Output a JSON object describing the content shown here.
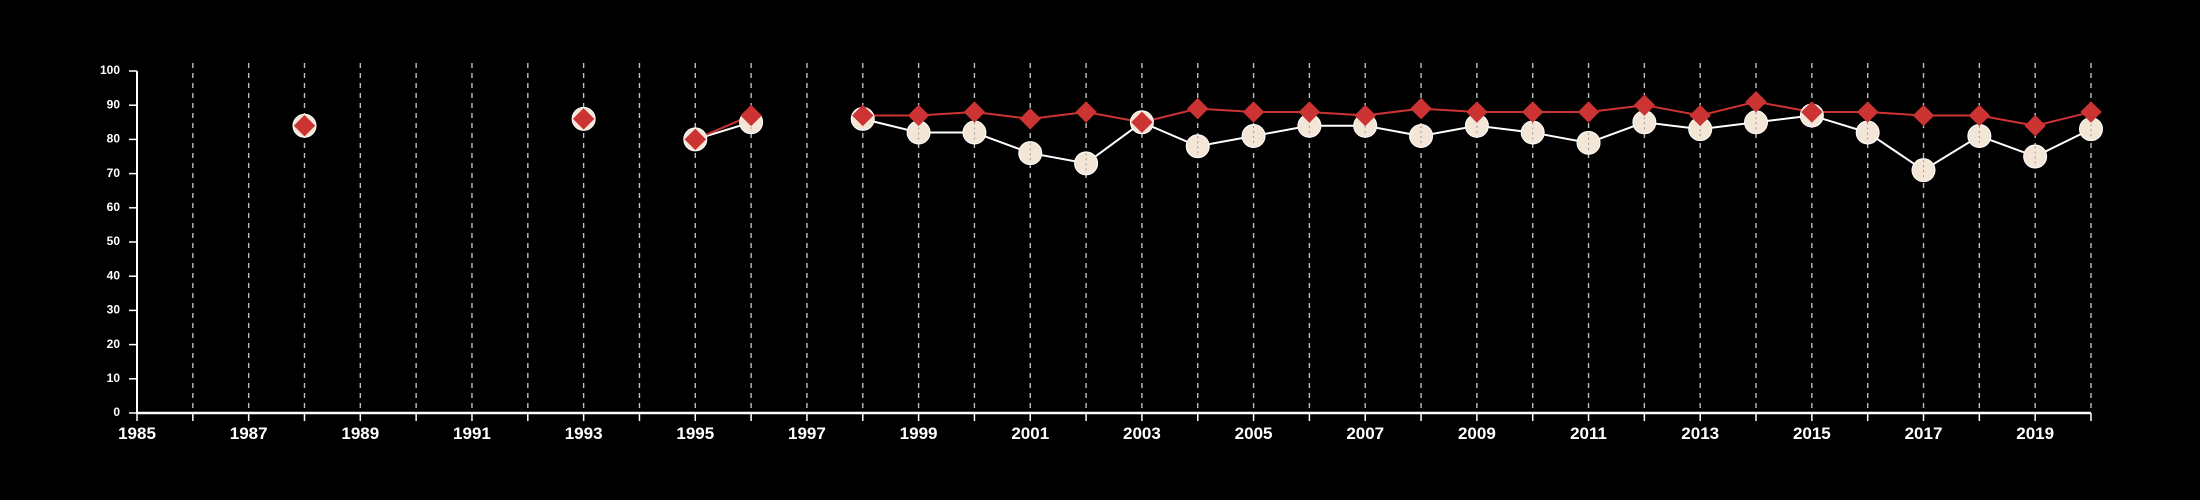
{
  "colors": {
    "background": "#000000",
    "axis": "#ffffff",
    "grid": "#bfbfbf",
    "series_white": "#f3e6d6",
    "series_white_line": "#ffffff",
    "series_red": "#cc3333"
  },
  "chart_data": {
    "type": "line",
    "title": "",
    "xlabel": "",
    "ylabel": "",
    "xlim": [
      1985,
      2020
    ],
    "ylim": [
      0,
      100
    ],
    "y_ticks": [
      "0",
      "10",
      "20",
      "30",
      "40",
      "50",
      "60",
      "70",
      "80",
      "90",
      "100"
    ],
    "x_ticks": [
      "1985",
      "1987",
      "1989",
      "1991",
      "1993",
      "1995",
      "1997",
      "1999",
      "2001",
      "2003",
      "2005",
      "2007",
      "2009",
      "2011",
      "2013",
      "2015",
      "2017",
      "2019"
    ],
    "grid": "vertical dashed lines at every year",
    "legend": "none",
    "series": [
      {
        "marker": "circle",
        "color": "#f3e6d6",
        "points": [
          [
            1988,
            84
          ],
          [
            1993,
            86
          ],
          [
            1995,
            80
          ],
          [
            1996,
            85
          ],
          [
            1998,
            86
          ],
          [
            1999,
            82
          ],
          [
            2000,
            82
          ],
          [
            2001,
            76
          ],
          [
            2002,
            73
          ],
          [
            2003,
            85
          ],
          [
            2004,
            78
          ],
          [
            2005,
            81
          ],
          [
            2006,
            84
          ],
          [
            2007,
            84
          ],
          [
            2008,
            81
          ],
          [
            2009,
            84
          ],
          [
            2010,
            82
          ],
          [
            2011,
            79
          ],
          [
            2012,
            85
          ],
          [
            2013,
            83
          ],
          [
            2014,
            85
          ],
          [
            2015,
            87
          ],
          [
            2016,
            82
          ],
          [
            2017,
            71
          ],
          [
            2018,
            81
          ],
          [
            2019,
            75
          ],
          [
            2020,
            83
          ]
        ]
      },
      {
        "marker": "diamond",
        "color": "#cc3333",
        "points": [
          [
            1988,
            84
          ],
          [
            1993,
            86
          ],
          [
            1995,
            80
          ],
          [
            1996,
            87
          ],
          [
            1998,
            87
          ],
          [
            1999,
            87
          ],
          [
            2000,
            88
          ],
          [
            2001,
            86
          ],
          [
            2002,
            88
          ],
          [
            2003,
            85
          ],
          [
            2004,
            89
          ],
          [
            2005,
            88
          ],
          [
            2006,
            88
          ],
          [
            2007,
            87
          ],
          [
            2008,
            89
          ],
          [
            2009,
            88
          ],
          [
            2010,
            88
          ],
          [
            2011,
            88
          ],
          [
            2012,
            90
          ],
          [
            2013,
            87
          ],
          [
            2014,
            91
          ],
          [
            2015,
            88
          ],
          [
            2016,
            88
          ],
          [
            2017,
            87
          ],
          [
            2018,
            87
          ],
          [
            2019,
            84
          ],
          [
            2020,
            88
          ]
        ]
      }
    ]
  }
}
